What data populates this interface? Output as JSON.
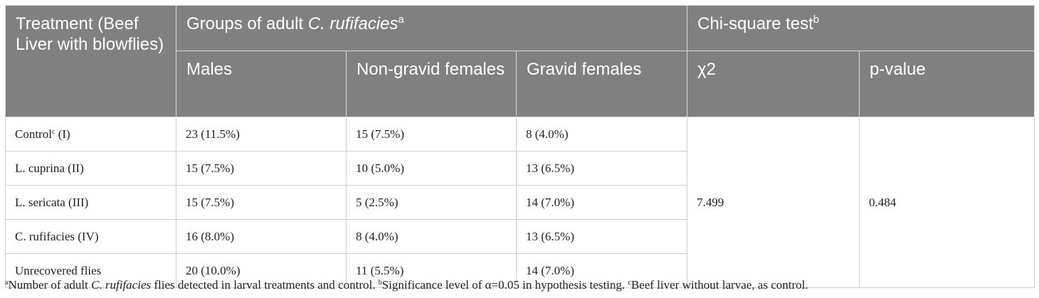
{
  "table": {
    "header": {
      "treatment": "Treatment (Beef Liver with blowflies)",
      "groups_prefix": "Groups of adult ",
      "groups_species": "C. rufifacies",
      "groups_mark": "a",
      "chi_label": "Chi-square test",
      "chi_mark": "b",
      "males": "Males",
      "nongravid": "Non-gravid females",
      "gravid": "Gravid females",
      "chi2": "χ2",
      "pvalue": "p-value"
    },
    "rows": [
      {
        "name": "Control",
        "mark": "c",
        "suffix": " (I)",
        "males": "23 (11.5%)",
        "nongravid": "15 (7.5%)",
        "gravid": "8 (4.0%)"
      },
      {
        "name": "L. cuprina (II)",
        "males": "15 (7.5%)",
        "nongravid": "10 (5.0%)",
        "gravid": "13 (6.5%)"
      },
      {
        "name": "L. sericata (III)",
        "males": "15 (7.5%)",
        "nongravid": "5 (2.5%)",
        "gravid": "14 (7.0%)"
      },
      {
        "name": "C. rufifacies (IV)",
        "males": "16 (8.0%)",
        "nongravid": "8 (4.0%)",
        "gravid": "13 (6.5%)"
      },
      {
        "name": "Unrecovered flies",
        "males": "20 (10.0%)",
        "nongravid": "11 (5.5%)",
        "gravid": "14 (7.0%)"
      }
    ],
    "chi2_value": "7.499",
    "p_value": "0.484"
  },
  "footnote": {
    "a_mark": "a",
    "a_text_1": "Number of adult ",
    "a_species": "C. rufifacies",
    "a_text_2": " flies detected in larval treatments and control. ",
    "b_mark": "b",
    "b_text": "Significance level of α=0.05 in hypothesis testing. ",
    "c_mark": "c",
    "c_text": "Beef liver without larvae, as control."
  }
}
